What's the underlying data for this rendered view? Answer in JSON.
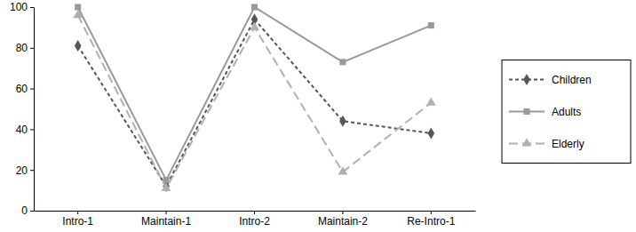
{
  "chart_data": {
    "type": "line",
    "categories": [
      "Intro-1",
      "Maintain-1",
      "Intro-2",
      "Maintain-2",
      "Re-Intro-1"
    ],
    "series": [
      {
        "name": "Children",
        "color": "#555555",
        "marker": "diamond",
        "line_style": "dashed",
        "values": [
          81,
          12,
          94,
          44,
          38
        ]
      },
      {
        "name": "Adults",
        "color": "#999999",
        "marker": "square",
        "line_style": "solid",
        "values": [
          100,
          15,
          100,
          73,
          91
        ]
      },
      {
        "name": "Elderly",
        "color": "#b0b0b0",
        "marker": "triangle",
        "line_style": "longdash",
        "values": [
          96,
          11,
          90,
          19,
          53
        ]
      }
    ],
    "ylim": [
      0,
      100
    ],
    "yticks": [
      0,
      20,
      40,
      60,
      80,
      100
    ],
    "grid": false,
    "legend": "right"
  }
}
